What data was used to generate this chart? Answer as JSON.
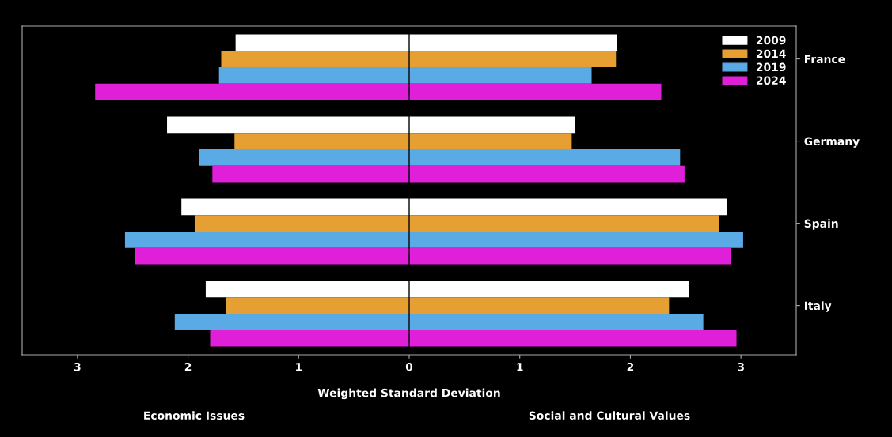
{
  "chart_data": {
    "type": "bar",
    "orientation": "horizontal",
    "stacked": true,
    "xlabel": "Weighted Standard Deviation",
    "categories": [
      null,
      "France",
      null,
      null,
      null,
      null,
      "Germany",
      null,
      null,
      null,
      null,
      "Spain",
      null,
      null,
      null,
      null,
      "Italy",
      null,
      null
    ],
    "series": [
      {
        "name": "2009",
        "color": "#ffffff",
        "values": [
          1.88,
          null,
          null,
          null,
          null,
          1.5,
          null,
          null,
          null,
          null,
          2.87,
          null,
          null,
          null,
          null,
          2.53,
          null,
          null,
          null
        ]
      },
      {
        "name": "2014",
        "color": "#e69f33",
        "values": [
          null,
          1.87,
          null,
          null,
          null,
          null,
          1.47,
          null,
          null,
          null,
          null,
          2.8,
          null,
          null,
          null,
          null,
          2.35,
          null,
          null
        ]
      },
      {
        "name": "2019",
        "color": "#5aaae6",
        "values": [
          null,
          null,
          1.65,
          null,
          null,
          null,
          null,
          2.45,
          null,
          null,
          null,
          null,
          3.02,
          null,
          null,
          null,
          null,
          2.66,
          null
        ]
      },
      {
        "name": "2024",
        "color": "#e020d8",
        "values": [
          null,
          null,
          null,
          2.28,
          null,
          null,
          null,
          null,
          2.49,
          null,
          null,
          null,
          null,
          2.91,
          null,
          null,
          null,
          null,
          2.96
        ]
      },
      {
        "color": "#ffffff",
        "values": [
          -1.57,
          null,
          null,
          null,
          null,
          -2.19,
          null,
          null,
          null,
          null,
          -2.06,
          null,
          null,
          null,
          null,
          -1.84,
          null,
          null,
          null
        ]
      },
      {
        "color": "#e69f33",
        "values": [
          null,
          -1.7,
          null,
          null,
          null,
          null,
          -1.58,
          null,
          null,
          null,
          null,
          -1.94,
          null,
          null,
          null,
          null,
          -1.66,
          null,
          null
        ]
      },
      {
        "color": "#5aaae6",
        "values": [
          null,
          null,
          -1.72,
          null,
          null,
          null,
          null,
          -1.9,
          null,
          null,
          null,
          null,
          -2.57,
          null,
          null,
          null,
          null,
          -2.12,
          null
        ]
      },
      {
        "color": "#e020d8",
        "values": [
          null,
          null,
          null,
          -2.84,
          null,
          null,
          null,
          null,
          -1.78,
          null,
          null,
          null,
          null,
          -2.48,
          null,
          null,
          null,
          null,
          -1.8
        ]
      }
    ],
    "xlim": [
      -3.5,
      3.5
    ],
    "xticks": [
      {
        "value": -3,
        "label": "3"
      },
      {
        "value": -2,
        "label": "2"
      },
      {
        "value": -1,
        "label": "1"
      },
      0,
      1,
      2,
      3
    ],
    "ref_lines": [
      {
        "axis": "x",
        "value": 0,
        "color": "#000000"
      }
    ],
    "annotations": [
      "Economic Issues",
      "Social and Cultural Values"
    ],
    "legend": "top right",
    "grid": false
  }
}
